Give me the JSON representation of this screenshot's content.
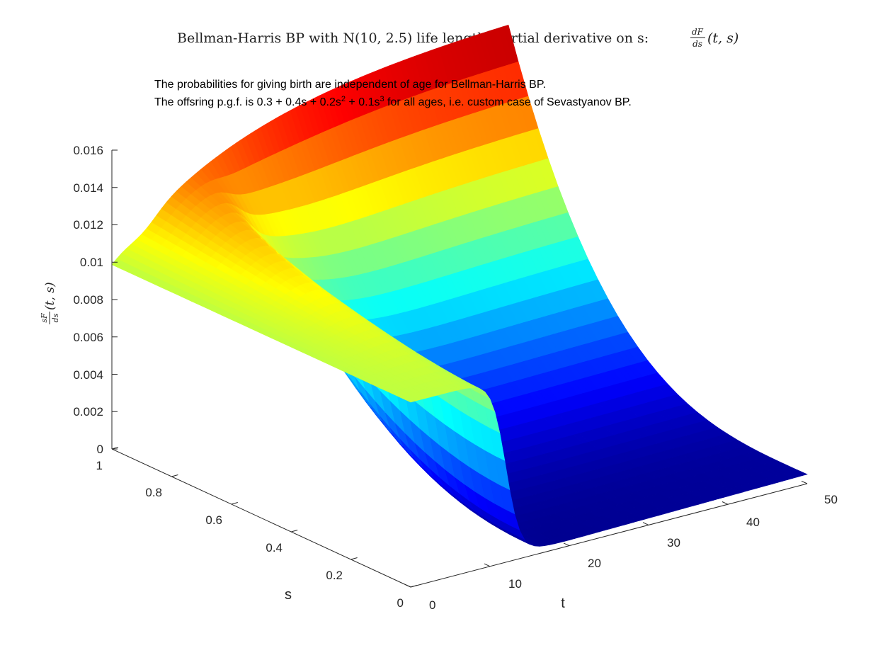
{
  "chart_data": {
    "type": "surface",
    "title": {
      "main": "Bellman-Harris BP with N(10, 2.5) life length. Partial derivative on s:",
      "formula_num": "dF",
      "formula_den": "ds",
      "formula_args": "(t, s)"
    },
    "annotation": {
      "line1": "The probabilities for giving birth are independent of age for Bellman-Harris BP.",
      "line2_a": "The offsring p.g.f. is 0.3 + 0.4s + 0.2s",
      "line2_exp1": "2",
      "line2_b": " + 0.1s",
      "line2_exp2": "3",
      "line2_c": " for all ages, i.e. custom case of Sevastyanov BP."
    },
    "zlabel": {
      "num": "sF",
      "den": "ds",
      "args": "(t, s)"
    },
    "xlabel": "t",
    "ylabel": "s",
    "x_ticks": [
      "0",
      "10",
      "20",
      "30",
      "40",
      "50"
    ],
    "x_tick_values": [
      0,
      10,
      20,
      30,
      40,
      50
    ],
    "y_ticks": [
      "0",
      "0.2",
      "0.4",
      "0.6",
      "0.8",
      "1"
    ],
    "y_tick_values": [
      0,
      0.2,
      0.4,
      0.6,
      0.8,
      1
    ],
    "z_ticks": [
      "0",
      "0.002",
      "0.004",
      "0.006",
      "0.008",
      "0.01",
      "0.012",
      "0.014",
      "0.016"
    ],
    "z_tick_values": [
      0,
      0.002,
      0.004,
      0.006,
      0.008,
      0.01,
      0.012,
      0.014,
      0.016
    ],
    "xlim": [
      0,
      50
    ],
    "ylim": [
      0,
      1
    ],
    "zlim": [
      0,
      0.016
    ],
    "colormap": "jet",
    "grid": false,
    "surface_samples": {
      "t": [
        0,
        5,
        10,
        15,
        20,
        30,
        40,
        50
      ],
      "s": [
        0,
        0.5,
        1
      ],
      "z_at_s0": [
        0.0099,
        0.0099,
        0.0095,
        0.0005,
        0.0001,
        0.0001,
        0.0002,
        0.0003
      ],
      "z_at_s1": [
        0.0099,
        0.0102,
        0.0118,
        0.0135,
        0.015,
        0.0165,
        0.017,
        0.0175
      ]
    }
  }
}
